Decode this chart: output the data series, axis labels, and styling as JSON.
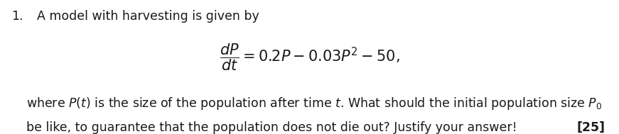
{
  "background_color": "#ffffff",
  "number_text": "1.",
  "intro_text": "A model with harvesting is given by",
  "equation": "\\dfrac{dP}{dt} = 0.2P - 0.03P^2 - 50,",
  "body_line1": "where $P(t)$ is the size of the population after time $t$. What should the initial population size $P_0$",
  "body_line2": "be like, to guarantee that the population does not die out? Justify your answer!",
  "marks_text": "[25]",
  "font_size_main": 12.5,
  "font_size_eq": 15,
  "text_color": "#1a1a1a"
}
